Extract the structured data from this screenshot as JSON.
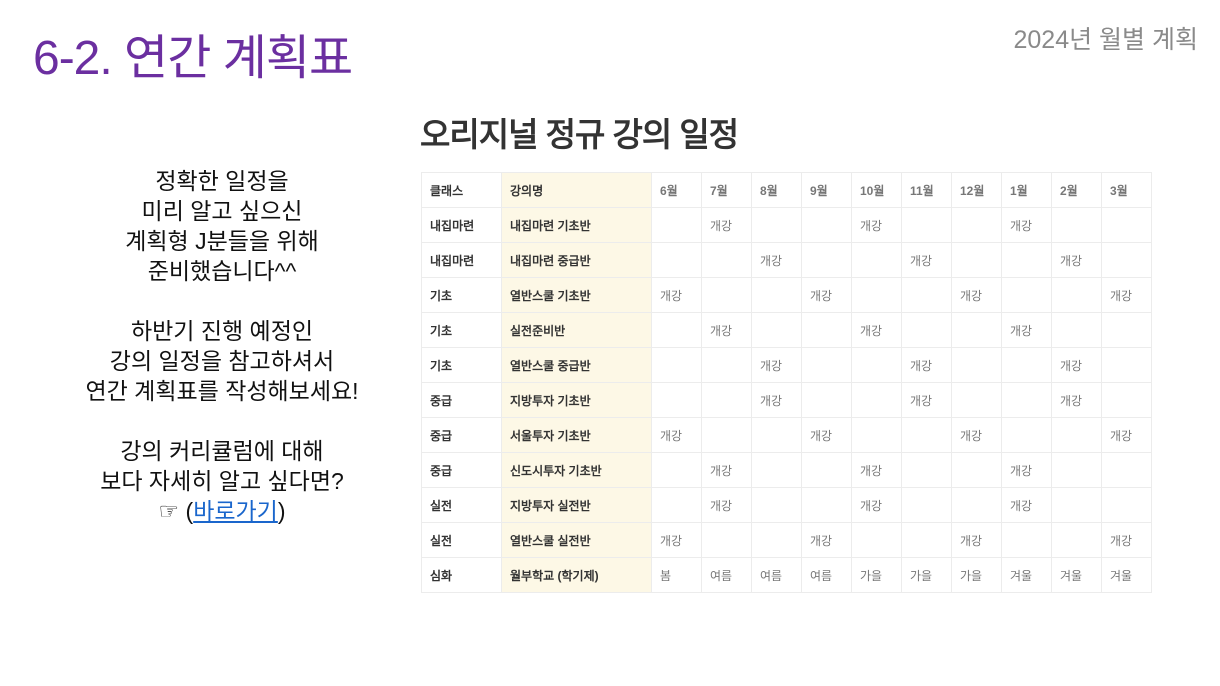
{
  "header": {
    "title": "6-2. 연간 계획표",
    "subtitle": "2024년 월별 계획"
  },
  "intro": {
    "lines1": [
      "정확한 일정을",
      "미리 알고 싶으신",
      "계획형 J분들을 위해",
      "준비했습니다^^"
    ],
    "lines2": [
      "하반기 진행 예정인",
      "강의 일정을 참고하셔서",
      "연간 계획표를 작성해보세요!"
    ],
    "lines3": [
      "강의 커리큘럼에 대해",
      "보다 자세히 알고 싶다면?"
    ],
    "pointer": "☞",
    "link_open": "(",
    "link_label": "바로가기",
    "link_close": ")"
  },
  "schedule": {
    "title": "오리지널 정규 강의 일정",
    "headers": [
      "클래스",
      "강의명",
      "6월",
      "7월",
      "8월",
      "9월",
      "10월",
      "11월",
      "12월",
      "1월",
      "2월",
      "3월"
    ],
    "rows": [
      [
        "내집마련",
        "내집마련 기초반",
        "",
        "개강",
        "",
        "",
        "개강",
        "",
        "",
        "개강",
        "",
        ""
      ],
      [
        "내집마련",
        "내집마련 중급반",
        "",
        "",
        "개강",
        "",
        "",
        "개강",
        "",
        "",
        "개강",
        ""
      ],
      [
        "기초",
        "열반스쿨 기초반",
        "개강",
        "",
        "",
        "개강",
        "",
        "",
        "개강",
        "",
        "",
        "개강"
      ],
      [
        "기초",
        "실전준비반",
        "",
        "개강",
        "",
        "",
        "개강",
        "",
        "",
        "개강",
        "",
        ""
      ],
      [
        "기초",
        "열반스쿨 중급반",
        "",
        "",
        "개강",
        "",
        "",
        "개강",
        "",
        "",
        "개강",
        ""
      ],
      [
        "중급",
        "지방투자 기초반",
        "",
        "",
        "개강",
        "",
        "",
        "개강",
        "",
        "",
        "개강",
        ""
      ],
      [
        "중급",
        "서울투자 기초반",
        "개강",
        "",
        "",
        "개강",
        "",
        "",
        "개강",
        "",
        "",
        "개강"
      ],
      [
        "중급",
        "신도시투자 기초반",
        "",
        "개강",
        "",
        "",
        "개강",
        "",
        "",
        "개강",
        "",
        ""
      ],
      [
        "실전",
        "지방투자 실전반",
        "",
        "개강",
        "",
        "",
        "개강",
        "",
        "",
        "개강",
        "",
        ""
      ],
      [
        "실전",
        "열반스쿨 실전반",
        "개강",
        "",
        "",
        "개강",
        "",
        "",
        "개강",
        "",
        "",
        "개강"
      ],
      [
        "심화",
        "월부학교 (학기제)",
        "봄",
        "여름",
        "여름",
        "여름",
        "가을",
        "가을",
        "가을",
        "겨울",
        "겨울",
        "겨울"
      ]
    ]
  },
  "colors": {
    "title": "#6b2fa0",
    "link": "#1a66cc",
    "name_column_bg": "#fdf8e6"
  }
}
